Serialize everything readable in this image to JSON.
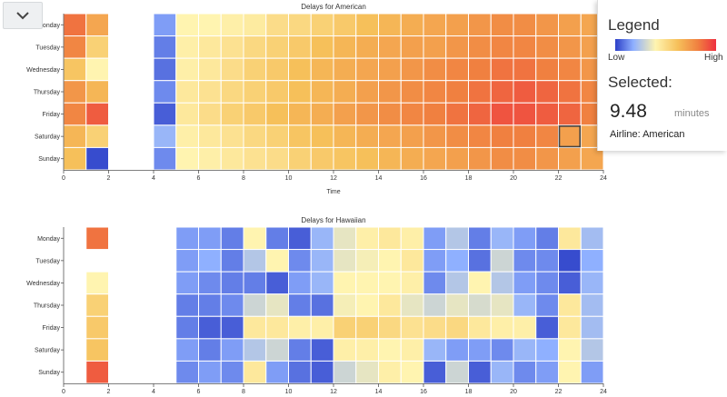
{
  "toggle": {
    "icon": "chevron-down-icon"
  },
  "legend": {
    "title": "Legend",
    "low_label": "Low",
    "high_label": "High"
  },
  "selected": {
    "title": "Selected:",
    "value": "9.48",
    "unit": "minutes",
    "airline": "Airline: American"
  },
  "chart_data": [
    {
      "type": "heatmap",
      "title": "Delays for American",
      "xlabel": "Time",
      "ylabel": "",
      "xlim": [
        0,
        24
      ],
      "x_ticks": [
        "0",
        "2",
        "4",
        "6",
        "8",
        "10",
        "12",
        "14",
        "16",
        "18",
        "20",
        "22",
        "24"
      ],
      "y_categories": [
        "Monday",
        "Tuesday",
        "Wednesday",
        "Thursday",
        "Friday",
        "Saturday",
        "Sunday"
      ],
      "scale": "low-to-high",
      "selected_cell": {
        "day": "Saturday",
        "hour": 22
      },
      "values": [
        [
          0.85,
          0.7,
          null,
          null,
          0.15,
          0.4,
          0.4,
          0.42,
          0.44,
          0.5,
          0.52,
          0.55,
          0.58,
          0.62,
          0.65,
          0.68,
          0.7,
          0.72,
          0.75,
          0.78,
          0.78,
          0.75,
          0.72,
          0.7
        ],
        [
          0.8,
          0.55,
          null,
          null,
          0.1,
          0.42,
          0.45,
          0.48,
          0.52,
          0.55,
          0.58,
          0.62,
          0.65,
          0.68,
          0.7,
          0.72,
          0.72,
          0.75,
          0.78,
          0.8,
          0.8,
          0.78,
          0.75,
          0.72
        ],
        [
          0.6,
          0.4,
          null,
          null,
          0.08,
          0.42,
          0.45,
          0.5,
          0.55,
          0.58,
          0.62,
          0.65,
          0.68,
          0.7,
          0.72,
          0.75,
          0.78,
          0.8,
          0.82,
          0.85,
          0.85,
          0.82,
          0.8,
          0.75
        ],
        [
          0.75,
          0.65,
          null,
          null,
          0.12,
          0.45,
          0.48,
          0.52,
          0.55,
          0.58,
          0.62,
          0.65,
          0.68,
          0.72,
          0.75,
          0.78,
          0.8,
          0.82,
          0.85,
          0.88,
          0.9,
          0.88,
          0.85,
          0.8
        ],
        [
          0.8,
          0.9,
          null,
          null,
          0.05,
          0.45,
          0.5,
          0.55,
          0.58,
          0.62,
          0.65,
          0.68,
          0.72,
          0.75,
          0.78,
          0.8,
          0.82,
          0.85,
          0.88,
          0.92,
          0.92,
          0.9,
          0.88,
          0.82
        ],
        [
          0.65,
          0.55,
          null,
          null,
          0.2,
          0.42,
          0.45,
          0.48,
          0.52,
          0.55,
          0.6,
          0.62,
          0.65,
          0.68,
          0.7,
          0.72,
          0.75,
          0.78,
          0.8,
          0.82,
          0.82,
          0.8,
          0.72,
          0.7
        ],
        [
          0.62,
          0.02,
          null,
          null,
          0.12,
          0.4,
          0.42,
          0.45,
          0.48,
          0.5,
          0.55,
          0.58,
          0.6,
          0.62,
          0.65,
          0.68,
          0.7,
          0.72,
          0.75,
          0.78,
          0.78,
          0.75,
          0.72,
          0.7
        ]
      ]
    },
    {
      "type": "heatmap",
      "title": "Delays for Hawaiian",
      "xlabel": "",
      "ylabel": "",
      "xlim": [
        0,
        24
      ],
      "x_ticks": [
        "0",
        "2",
        "4",
        "6",
        "8",
        "10",
        "12",
        "14",
        "16",
        "18",
        "20",
        "22",
        "24"
      ],
      "y_categories": [
        "Monday",
        "Tuesday",
        "Wednesday",
        "Thursday",
        "Friday",
        "Saturday",
        "Sunday"
      ],
      "scale": "low-to-high",
      "values": [
        [
          null,
          0.85,
          null,
          null,
          null,
          0.15,
          0.15,
          0.1,
          0.4,
          0.1,
          0.05,
          0.2,
          0.35,
          0.42,
          0.45,
          0.42,
          0.15,
          0.25,
          0.1,
          0.2,
          0.15,
          0.1,
          0.45,
          0.22
        ],
        [
          null,
          null,
          null,
          null,
          null,
          0.15,
          0.18,
          0.1,
          0.25,
          0.4,
          0.12,
          0.2,
          0.35,
          0.38,
          0.4,
          0.45,
          0.15,
          0.18,
          0.08,
          0.3,
          0.12,
          0.12,
          0.02,
          0.18
        ],
        [
          null,
          0.4,
          null,
          null,
          null,
          0.15,
          0.12,
          0.1,
          0.1,
          0.05,
          0.15,
          0.2,
          0.4,
          0.4,
          0.4,
          0.42,
          0.12,
          0.25,
          0.4,
          0.25,
          0.15,
          0.12,
          0.05,
          0.2
        ],
        [
          null,
          0.55,
          null,
          null,
          null,
          0.1,
          0.1,
          0.12,
          0.3,
          0.35,
          0.1,
          0.08,
          0.38,
          0.4,
          0.45,
          0.35,
          0.3,
          0.35,
          0.32,
          0.35,
          0.2,
          0.12,
          0.45,
          0.22
        ],
        [
          null,
          0.58,
          null,
          null,
          null,
          0.1,
          0.05,
          0.05,
          0.45,
          0.45,
          0.42,
          0.42,
          0.55,
          0.55,
          0.52,
          0.48,
          0.5,
          0.52,
          0.45,
          0.42,
          0.42,
          0.05,
          0.45,
          0.22
        ],
        [
          null,
          0.6,
          null,
          null,
          null,
          0.15,
          0.1,
          0.15,
          0.25,
          0.3,
          0.1,
          0.05,
          0.42,
          0.42,
          0.4,
          0.42,
          0.2,
          0.15,
          0.15,
          0.12,
          0.2,
          0.18,
          0.4,
          0.25
        ],
        [
          null,
          0.9,
          null,
          null,
          null,
          0.12,
          0.15,
          0.12,
          0.45,
          0.15,
          0.08,
          0.05,
          0.3,
          0.35,
          0.42,
          0.4,
          0.05,
          0.3,
          0.05,
          0.2,
          0.12,
          0.15,
          0.4,
          0.15
        ]
      ]
    }
  ],
  "colors": {
    "low": "#2c3fc8",
    "mid_low": "#8fb0ff",
    "mid": "#fff4b0",
    "mid_high": "#f6c05a",
    "high_mid": "#f08040",
    "high": "#ee3040"
  }
}
